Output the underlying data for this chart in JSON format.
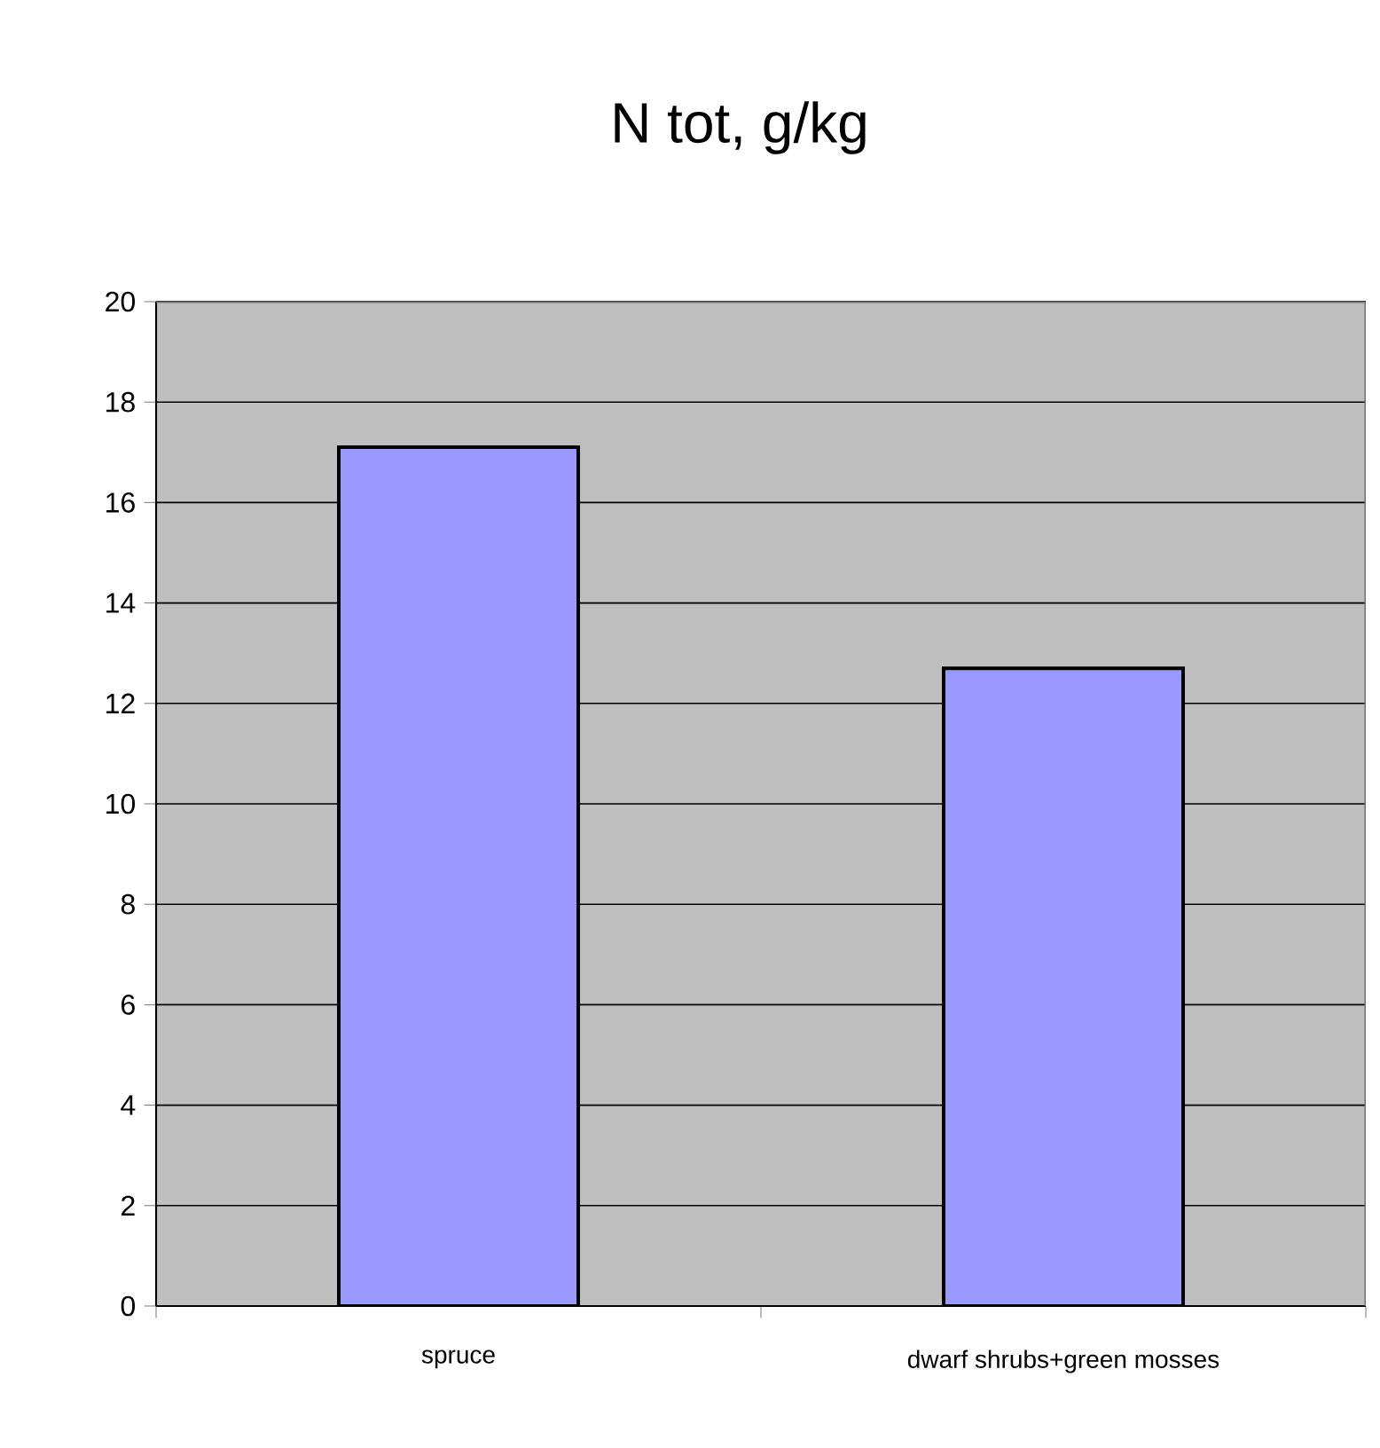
{
  "chart_data": {
    "type": "bar",
    "title": "N tot, g/kg",
    "categories": [
      "spruce",
      "dwarf shrubs+green mosses"
    ],
    "values": [
      17.1,
      12.7
    ],
    "color": "#9999ff",
    "ylim": [
      0,
      20
    ],
    "yticks": [
      0,
      2,
      4,
      6,
      8,
      10,
      12,
      14,
      16,
      18,
      20
    ],
    "grid": "y"
  }
}
